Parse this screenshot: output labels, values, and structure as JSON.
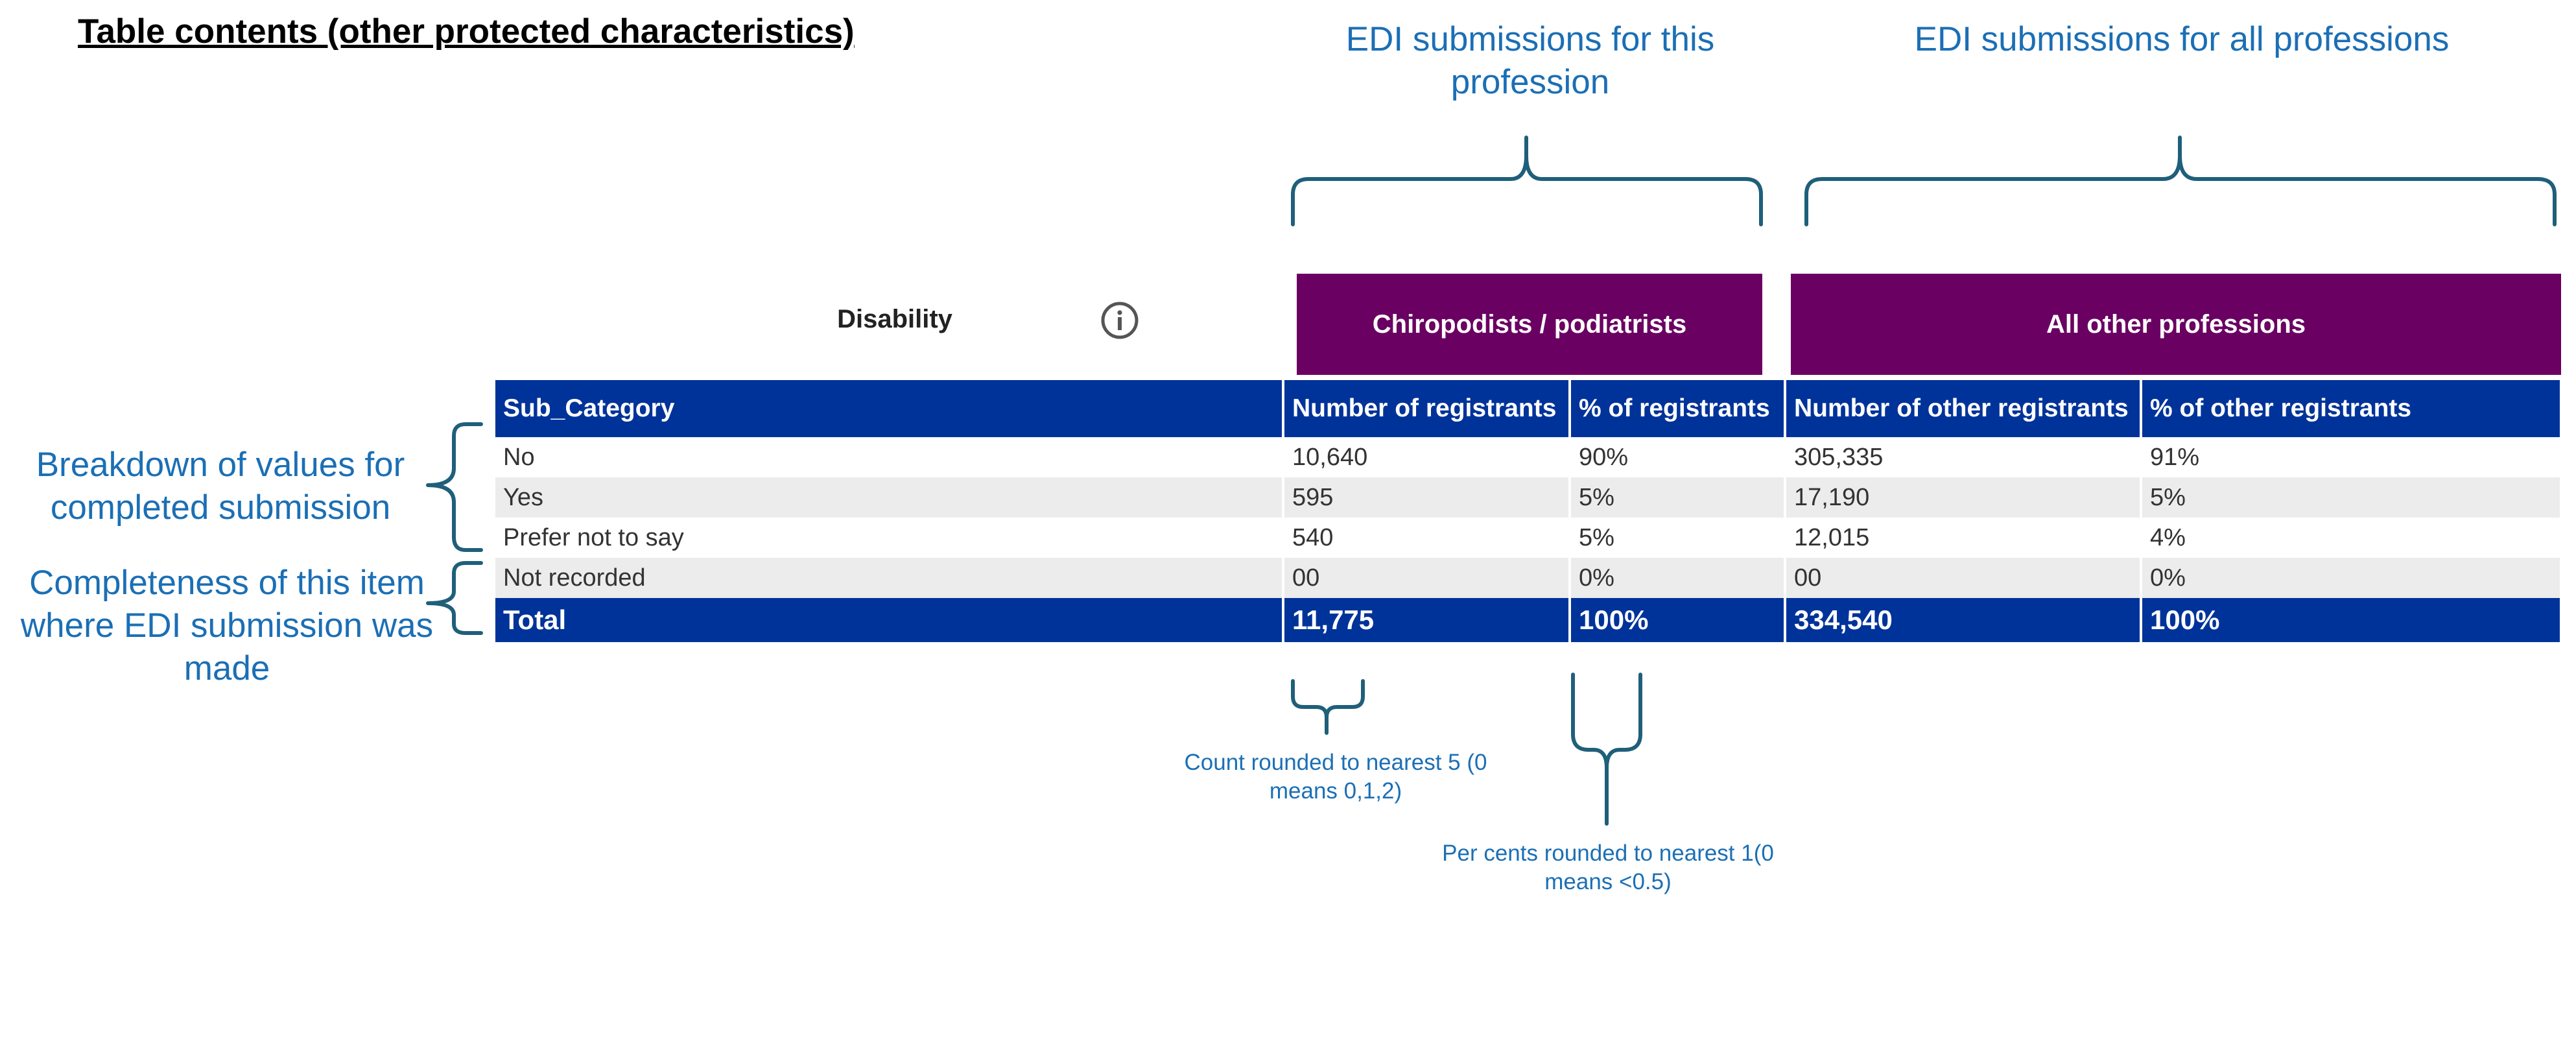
{
  "title": "Table contents (other protected characteristics)",
  "annotations": {
    "top_left": "EDI submissions for this profession",
    "top_right": "EDI submissions for all professions",
    "left_breakdown": "Breakdown of values for completed submission",
    "left_completeness": "Completeness of this item where EDI submission was made",
    "count_note": "Count rounded to nearest 5 (0 means 0,1,2)",
    "percent_note": "Per cents rounded to nearest 1(0 means <0.5)"
  },
  "filter": {
    "label": "Disability",
    "icon": "info-icon"
  },
  "headers": {
    "profession": "Chiropodists / podiatrists",
    "other": "All other professions"
  },
  "table": {
    "columns": [
      "Sub_Category",
      "Number of registrants",
      "% of registrants",
      "Number of other registrants",
      "% of other registrants"
    ],
    "rows": [
      [
        "No",
        "10,640",
        "90%",
        "305,335",
        "91%"
      ],
      [
        "Yes",
        "595",
        "5%",
        "17,190",
        "5%"
      ],
      [
        "Prefer not to say",
        "540",
        "5%",
        "12,015",
        "4%"
      ],
      [
        "Not recorded",
        "00",
        "0%",
        "00",
        "0%"
      ]
    ],
    "total": [
      "Total",
      "11,775",
      "100%",
      "334,540",
      "100%"
    ]
  },
  "colors": {
    "annotation_blue": "#1b6fb5",
    "bracket": "#1f5f7a",
    "purple": "#6a0062",
    "navy": "#003399"
  }
}
